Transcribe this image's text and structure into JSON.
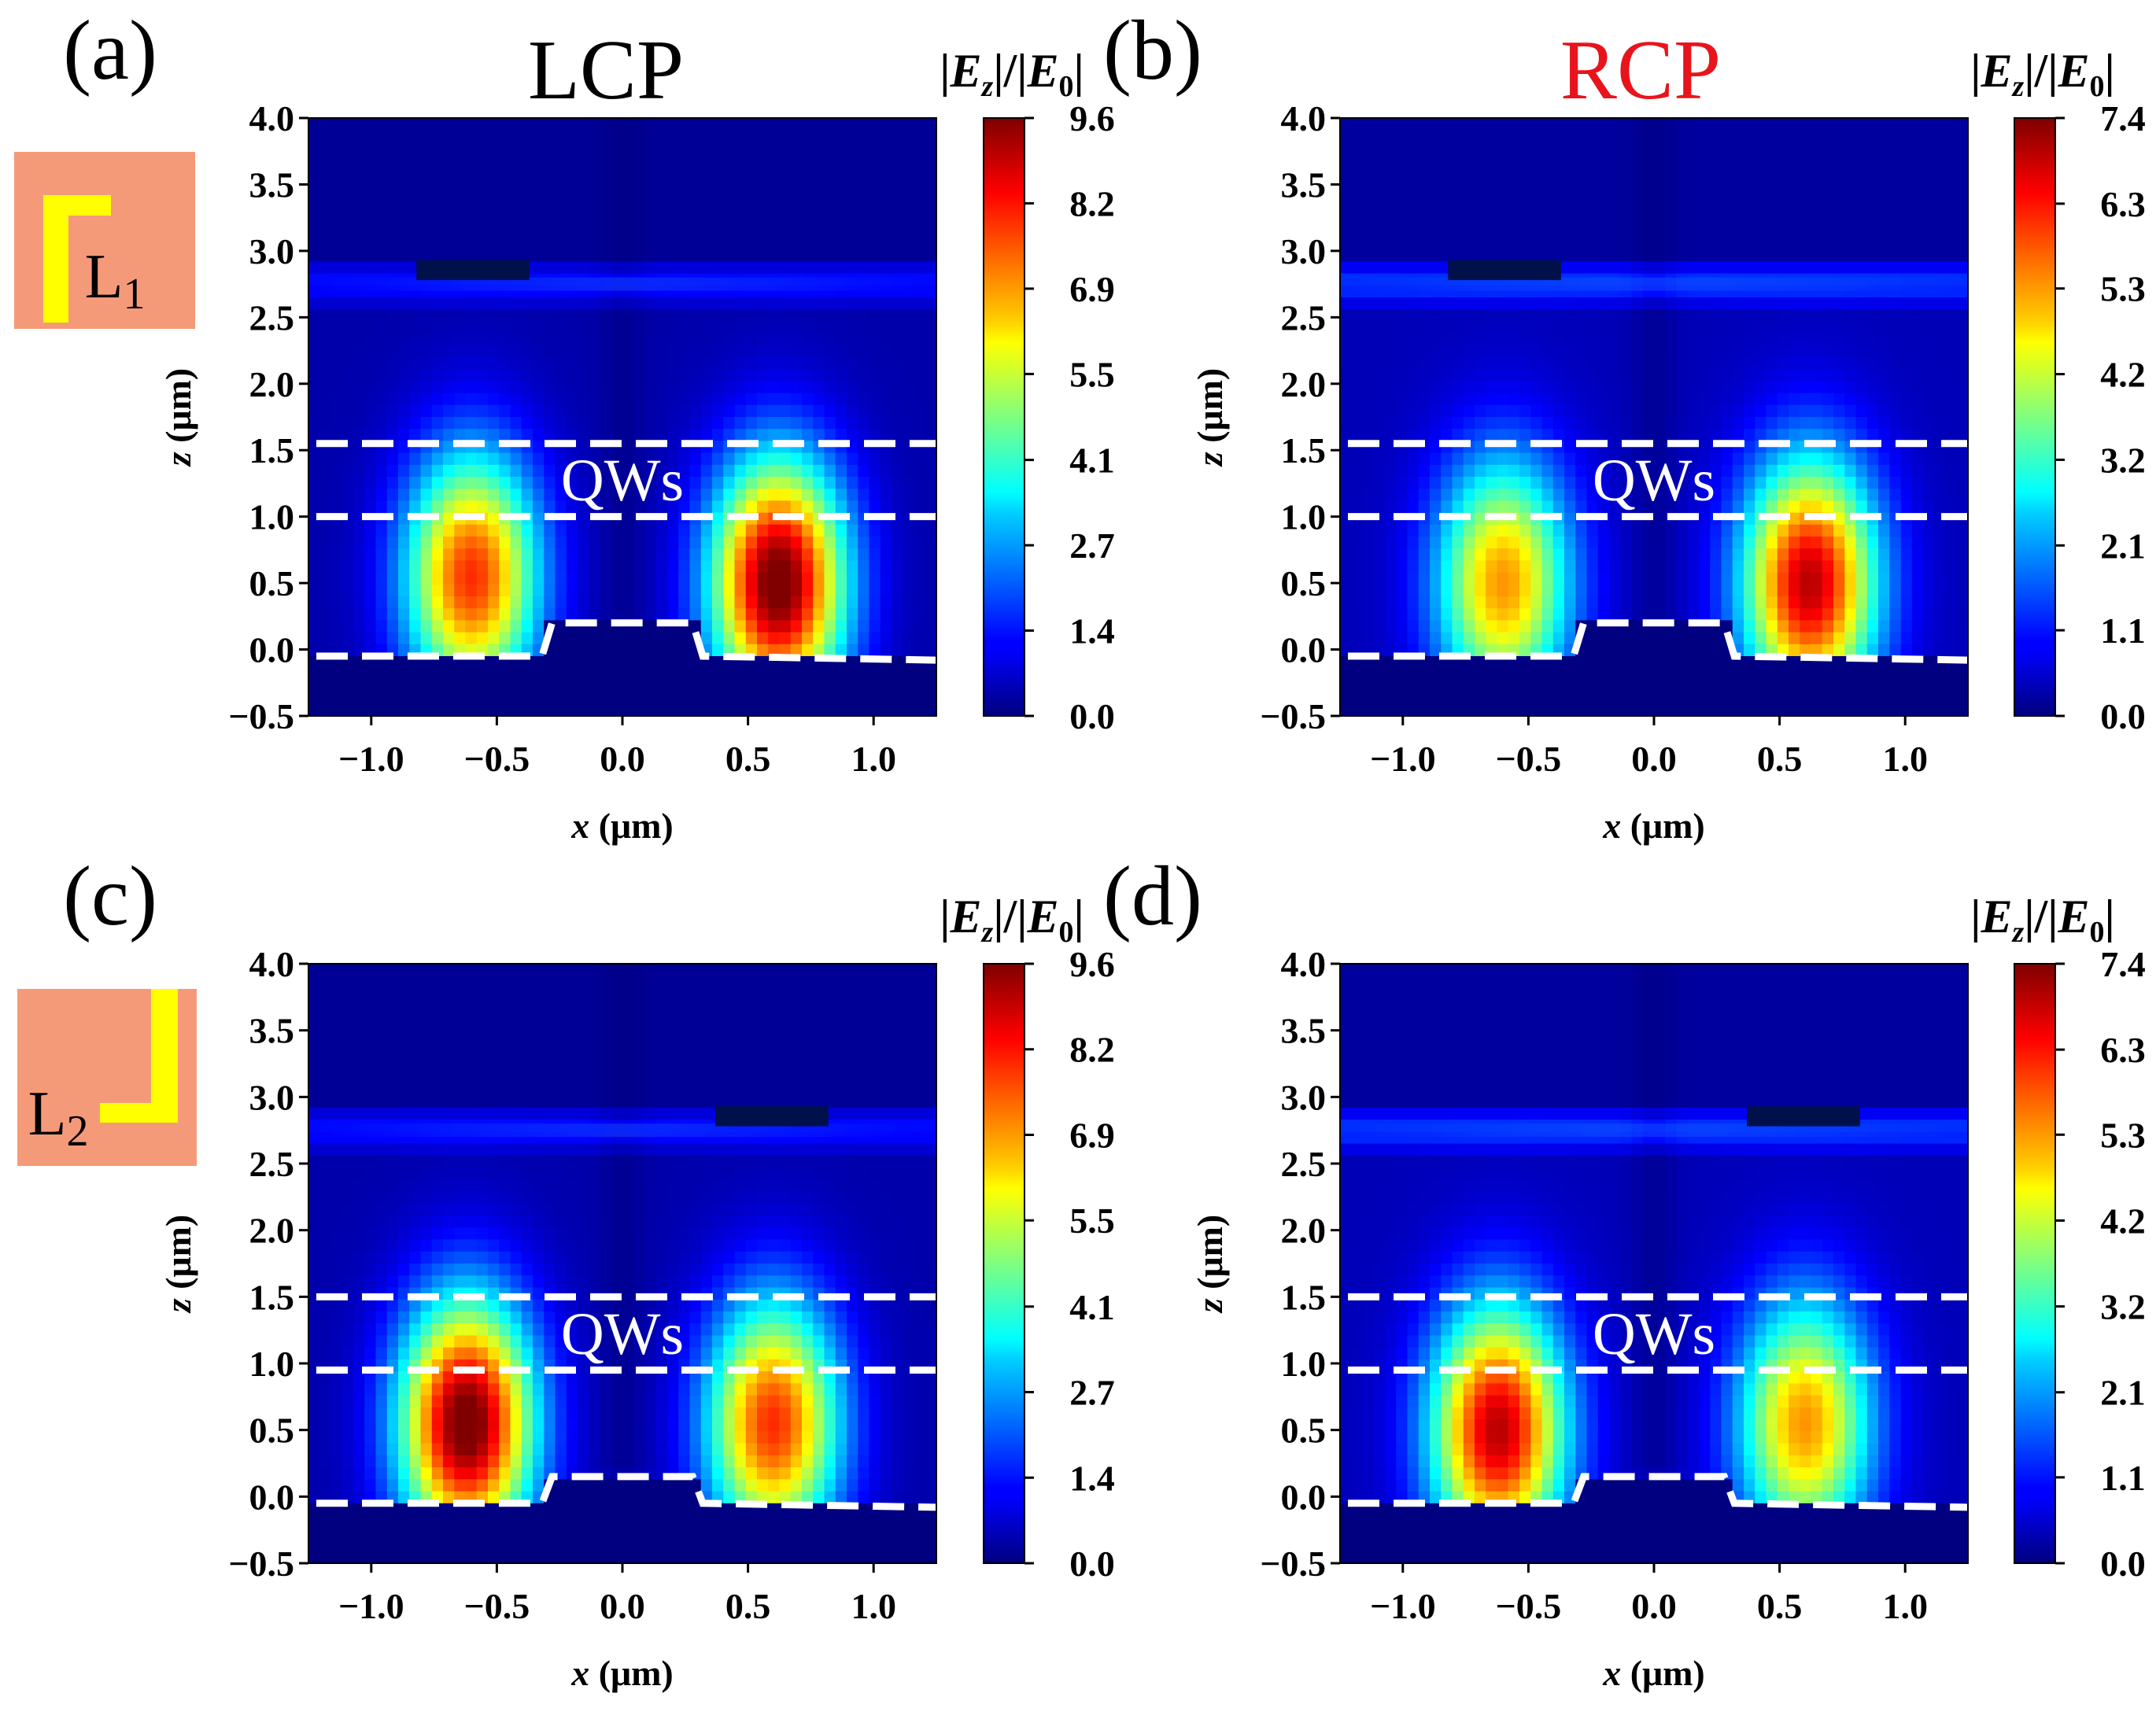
{
  "figure": {
    "colors": {
      "background_low": "#000080",
      "colormap": "jet",
      "qw_lines": "#ffffff",
      "rcp_title": "#e8141c",
      "lcp_title": "#000000",
      "inset_bg": "#f59a79",
      "inset_mark": "#ffff00"
    },
    "row_insets": [
      {
        "label": "L",
        "subscript": "1",
        "icon": "l-shape-top-left-icon"
      },
      {
        "label": "L",
        "subscript": "2",
        "icon": "l-shape-bottom-right-icon"
      }
    ],
    "column_titles": [
      "LCP",
      "RCP"
    ]
  },
  "chart_data": [
    {
      "type": "heatmap",
      "panel": "(a)",
      "title": "LCP",
      "inset": "L1",
      "xlabel": "x (μm)",
      "ylabel": "z (μm)",
      "xlim": [
        -1.25,
        1.25
      ],
      "ylim": [
        -0.5,
        4.0
      ],
      "xticks": [
        "−1.0",
        "−0.5",
        "0.0",
        "0.5",
        "1.0"
      ],
      "xtick_values": [
        -1.0,
        -0.5,
        0.0,
        0.5,
        1.0
      ],
      "yticks": [
        "−0.5",
        "0.0",
        "0.5",
        "1.0",
        "1.5",
        "2.0",
        "2.5",
        "3.0",
        "3.5",
        "4.0"
      ],
      "ytick_values": [
        -0.5,
        0.0,
        0.5,
        1.0,
        1.5,
        2.0,
        2.5,
        3.0,
        3.5,
        4.0
      ],
      "colorbar": {
        "label": "|Ez|/|E0|",
        "min": 0.0,
        "max": 9.6,
        "ticks": [
          "0.0",
          "1.4",
          "2.7",
          "4.1",
          "5.5",
          "6.9",
          "8.2",
          "9.6"
        ],
        "tick_values": [
          0.0,
          1.37,
          2.74,
          4.11,
          5.49,
          6.86,
          8.23,
          9.6
        ]
      },
      "annotation": "QWs",
      "qw_lines_z": [
        1.55,
        1.0
      ],
      "hotspots": [
        {
          "x": -0.6,
          "z": 0.55,
          "peak": 7.6
        },
        {
          "x": 0.62,
          "z": 0.5,
          "peak": 9.6
        }
      ],
      "ridge": {
        "x_from": -0.28,
        "x_to": 0.28,
        "z_top": 0.2
      }
    },
    {
      "type": "heatmap",
      "panel": "(b)",
      "title": "RCP",
      "inset": "L1",
      "xlabel": "x (μm)",
      "ylabel": "z (μm)",
      "xlim": [
        -1.25,
        1.25
      ],
      "ylim": [
        -0.5,
        4.0
      ],
      "xticks": [
        "−1.0",
        "−0.5",
        "0.0",
        "0.5",
        "1.0"
      ],
      "xtick_values": [
        -1.0,
        -0.5,
        0.0,
        0.5,
        1.0
      ],
      "yticks": [
        "−0.5",
        "0.0",
        "0.5",
        "1.0",
        "1.5",
        "2.0",
        "2.5",
        "3.0",
        "3.5",
        "4.0"
      ],
      "ytick_values": [
        -0.5,
        0.0,
        0.5,
        1.0,
        1.5,
        2.0,
        2.5,
        3.0,
        3.5,
        4.0
      ],
      "colorbar": {
        "label": "|Ez|/|E0|",
        "min": 0.0,
        "max": 7.4,
        "ticks": [
          "0.0",
          "1.1",
          "2.1",
          "3.2",
          "4.2",
          "5.3",
          "6.3",
          "7.4"
        ],
        "tick_values": [
          0.0,
          1.06,
          2.11,
          3.17,
          4.23,
          5.29,
          6.34,
          7.4
        ]
      },
      "annotation": "QWs",
      "qw_lines_z": [
        1.55,
        1.0
      ],
      "hotspots": [
        {
          "x": -0.6,
          "z": 0.5,
          "peak": 5.0
        },
        {
          "x": 0.62,
          "z": 0.5,
          "peak": 6.6
        }
      ],
      "ridge": {
        "x_from": -0.28,
        "x_to": 0.28,
        "z_top": 0.2
      }
    },
    {
      "type": "heatmap",
      "panel": "(c)",
      "title": "",
      "inset": "L2",
      "xlabel": "x (μm)",
      "ylabel": "z (μm)",
      "xlim": [
        -1.25,
        1.25
      ],
      "ylim": [
        -0.5,
        4.0
      ],
      "xticks": [
        "−1.0",
        "−0.5",
        "0.0",
        "0.5",
        "1.0"
      ],
      "xtick_values": [
        -1.0,
        -0.5,
        0.0,
        0.5,
        1.0
      ],
      "yticks": [
        "−0.5",
        "0.0",
        "0.5",
        "1.0",
        "1.5",
        "2.0",
        "2.5",
        "3.0",
        "3.5",
        "4.0"
      ],
      "ytick_values": [
        -0.5,
        0.0,
        0.5,
        1.0,
        1.5,
        2.0,
        2.5,
        3.0,
        3.5,
        4.0
      ],
      "colorbar": {
        "label": "|Ez|/|E0|",
        "min": 0.0,
        "max": 9.6,
        "ticks": [
          "0.0",
          "1.4",
          "2.7",
          "4.1",
          "5.5",
          "6.9",
          "8.2",
          "9.6"
        ],
        "tick_values": [
          0.0,
          1.37,
          2.74,
          4.11,
          5.49,
          6.86,
          8.23,
          9.6
        ]
      },
      "annotation": "QWs",
      "qw_lines_z": [
        1.5,
        0.95
      ],
      "hotspots": [
        {
          "x": -0.62,
          "z": 0.55,
          "peak": 9.6
        },
        {
          "x": 0.6,
          "z": 0.55,
          "peak": 7.6
        }
      ],
      "ridge": {
        "x_from": -0.28,
        "x_to": 0.28,
        "z_top": 0.15
      }
    },
    {
      "type": "heatmap",
      "panel": "(d)",
      "title": "",
      "inset": "L2",
      "xlabel": "x (μm)",
      "ylabel": "z (μm)",
      "xlim": [
        -1.25,
        1.25
      ],
      "ylim": [
        -0.5,
        4.0
      ],
      "xticks": [
        "−1.0",
        "−0.5",
        "0.0",
        "0.5",
        "1.0"
      ],
      "xtick_values": [
        -1.0,
        -0.5,
        0.0,
        0.5,
        1.0
      ],
      "yticks": [
        "−0.5",
        "0.0",
        "0.5",
        "1.0",
        "1.5",
        "2.0",
        "2.5",
        "3.0",
        "3.5",
        "4.0"
      ],
      "ytick_values": [
        -0.5,
        0.0,
        0.5,
        1.0,
        1.5,
        2.0,
        2.5,
        3.0,
        3.5,
        4.0
      ],
      "colorbar": {
        "label": "|Ez|/|E0|",
        "min": 0.0,
        "max": 7.4,
        "ticks": [
          "0.0",
          "1.1",
          "2.1",
          "3.2",
          "4.2",
          "5.3",
          "6.3",
          "7.4"
        ],
        "tick_values": [
          0.0,
          1.06,
          2.11,
          3.17,
          4.23,
          5.29,
          6.34,
          7.4
        ]
      },
      "annotation": "QWs",
      "qw_lines_z": [
        1.5,
        0.95
      ],
      "hotspots": [
        {
          "x": -0.62,
          "z": 0.5,
          "peak": 6.6
        },
        {
          "x": 0.6,
          "z": 0.55,
          "peak": 5.0
        }
      ],
      "ridge": {
        "x_from": -0.28,
        "x_to": 0.28,
        "z_top": 0.15
      }
    }
  ]
}
